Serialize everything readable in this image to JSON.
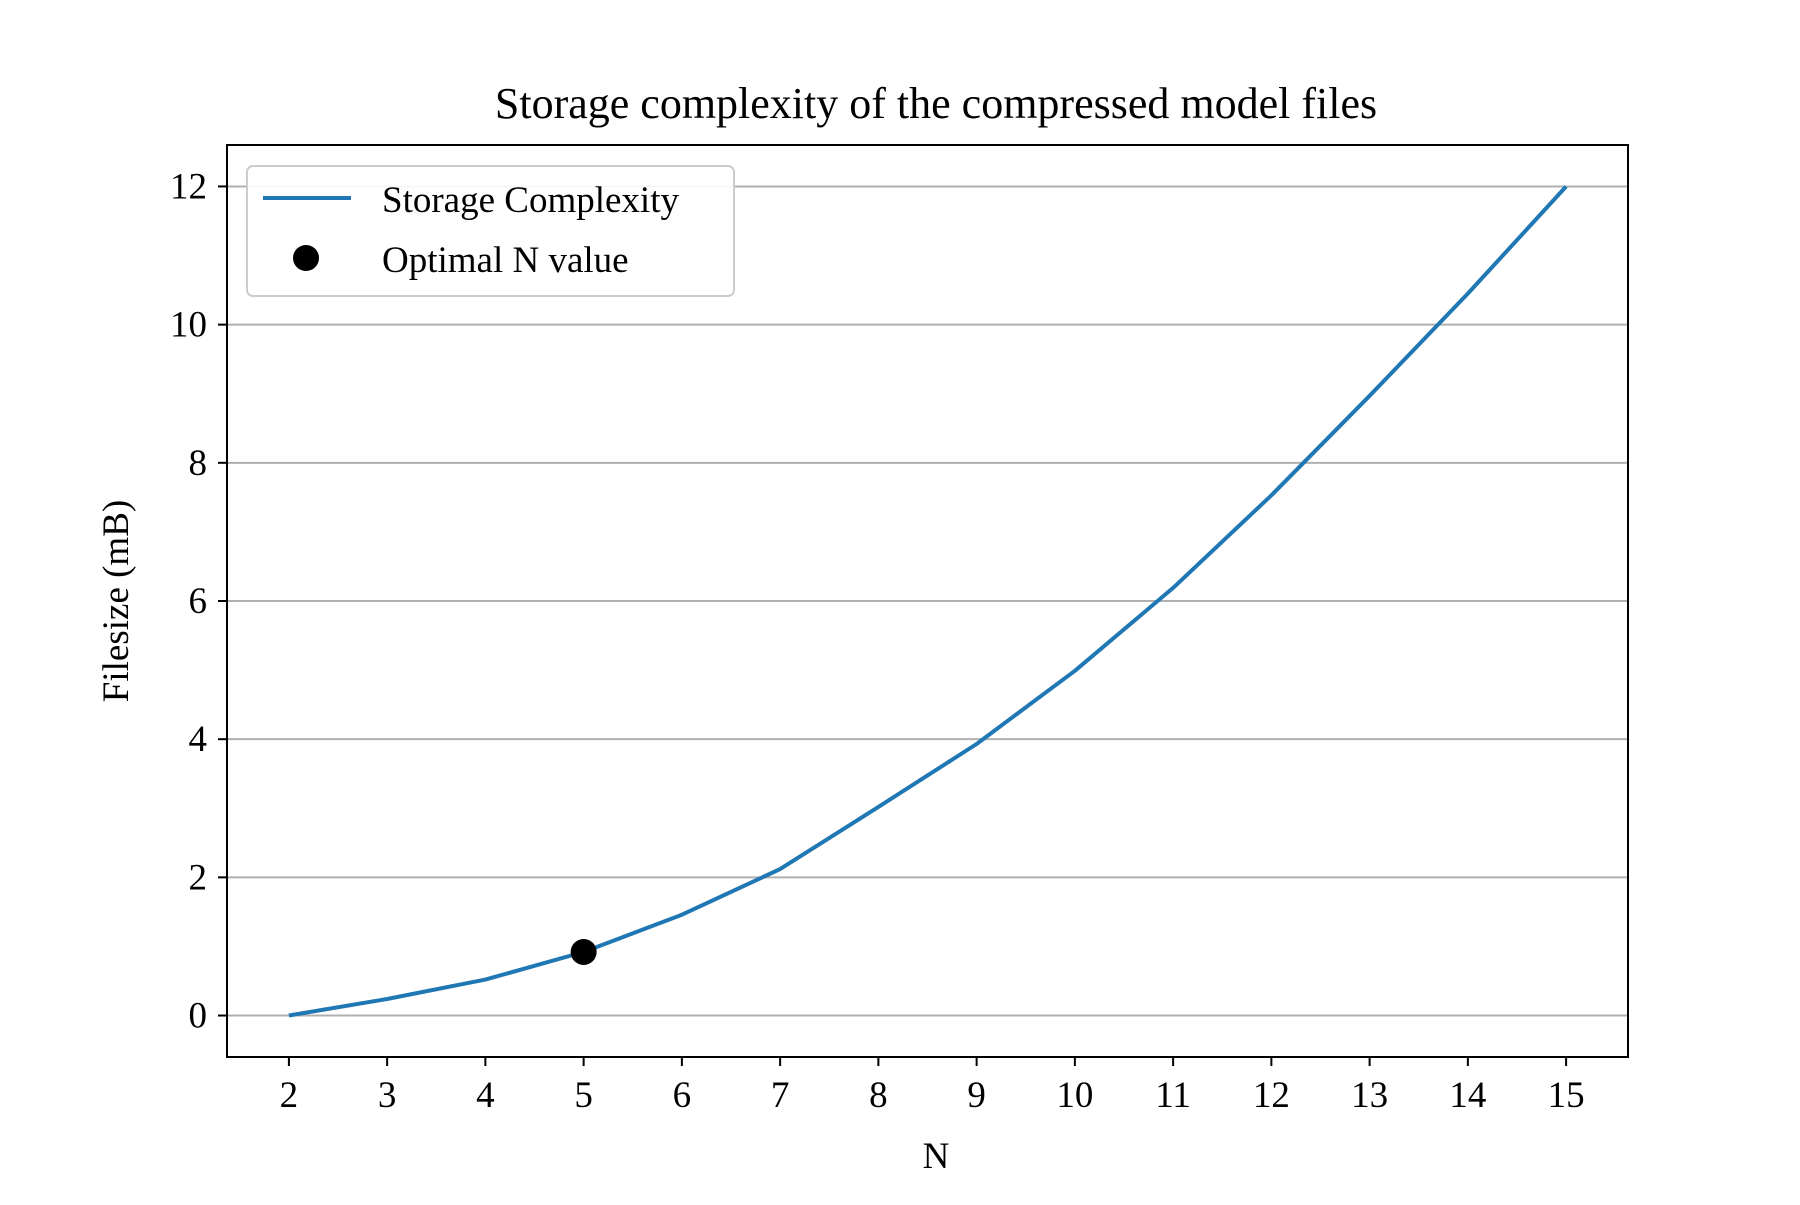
{
  "chart_data": {
    "type": "line",
    "title": "Storage complexity of the compressed model files",
    "xlabel": "N",
    "ylabel": "Filesize (mB)",
    "x": [
      2,
      3,
      4,
      5,
      6,
      7,
      8,
      9,
      10,
      11,
      12,
      13,
      14,
      15
    ],
    "x_ticks": [
      "2",
      "3",
      "4",
      "5",
      "6",
      "7",
      "8",
      "9",
      "10",
      "11",
      "12",
      "13",
      "14",
      "15"
    ],
    "y_ticks": [
      "0",
      "2",
      "4",
      "6",
      "8",
      "10",
      "12"
    ],
    "xlim": [
      1.37,
      15.63
    ],
    "ylim": [
      -0.6,
      12.6
    ],
    "grid": "horizontal",
    "legend_position": "top-left",
    "series": [
      {
        "name": "Storage Complexity",
        "kind": "line",
        "color": "#1f77b4",
        "values": [
          0.0,
          0.24,
          0.52,
          0.92,
          1.46,
          2.12,
          3.02,
          3.93,
          4.99,
          6.19,
          7.53,
          8.97,
          10.45,
          12.0
        ]
      },
      {
        "name": "Optimal N value",
        "kind": "point",
        "color": "#000000",
        "x": 5,
        "y": 0.92
      }
    ]
  }
}
